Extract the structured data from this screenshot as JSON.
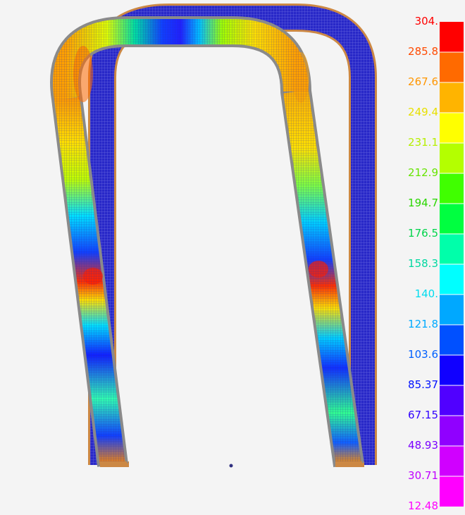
{
  "view": {
    "background": "#f4f4f4"
  },
  "model": {
    "name": "bent tube pair",
    "mesh_color": "#1c1cc8",
    "edge_color": "#cc8844",
    "outline_color": "#8a8a8a"
  },
  "legend": {
    "labels": [
      {
        "text": "304.",
        "color": "#ff0000"
      },
      {
        "text": "285.8",
        "color": "#ff4a00"
      },
      {
        "text": "267.6",
        "color": "#ff9600"
      },
      {
        "text": "249.4",
        "color": "#e8e000"
      },
      {
        "text": "231.1",
        "color": "#b6ef00"
      },
      {
        "text": "212.9",
        "color": "#66e400"
      },
      {
        "text": "194.7",
        "color": "#2ad600"
      },
      {
        "text": "176.5",
        "color": "#00d44a"
      },
      {
        "text": "158.3",
        "color": "#00d8a0"
      },
      {
        "text": "140.",
        "color": "#00dcee"
      },
      {
        "text": "121.8",
        "color": "#00aaff"
      },
      {
        "text": "103.6",
        "color": "#0060ff"
      },
      {
        "text": "85.37",
        "color": "#0010ff"
      },
      {
        "text": "67.15",
        "color": "#3000ff"
      },
      {
        "text": "48.93",
        "color": "#7a00ff"
      },
      {
        "text": "30.71",
        "color": "#c000ff"
      },
      {
        "text": "12.48",
        "color": "#ff00ff"
      }
    ],
    "gradient": [
      "#ff0000",
      "#ff6a00",
      "#ffb400",
      "#ffff00",
      "#b4ff00",
      "#40ff00",
      "#00ff40",
      "#00ffaa",
      "#00ffff",
      "#00a8ff",
      "#0050ff",
      "#1000ff",
      "#5000ff",
      "#9000ff",
      "#d000ff",
      "#ff00ff"
    ]
  }
}
